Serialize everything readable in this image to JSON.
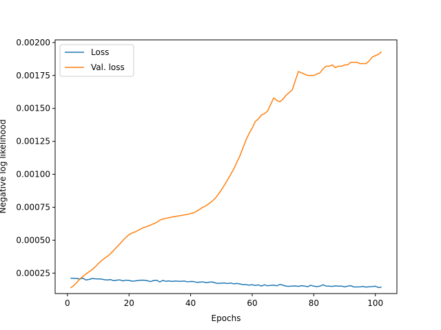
{
  "chart_data": {
    "type": "line",
    "title": "",
    "xlabel": "Epochs",
    "ylabel": "Negative log likelihood",
    "xlim": [
      -4,
      107
    ],
    "ylim": [
      9.5e-05,
      0.00202
    ],
    "xticks": [
      0,
      20,
      40,
      60,
      80,
      100
    ],
    "xtick_labels": [
      "0",
      "20",
      "40",
      "60",
      "80",
      "100"
    ],
    "yticks": [
      0.00025,
      0.0005,
      0.00075,
      0.001,
      0.00125,
      0.0015,
      0.00175,
      0.002
    ],
    "ytick_labels": [
      "0.00025",
      "0.00050",
      "0.00075",
      "0.00100",
      "0.00125",
      "0.00150",
      "0.00175",
      "0.00200"
    ],
    "grid": false,
    "legend_position": "top-left",
    "series": [
      {
        "name": "Loss",
        "color": "#1f77b4",
        "x": [
          1,
          2,
          3,
          4,
          5,
          6,
          7,
          8,
          9,
          10,
          11,
          12,
          13,
          14,
          15,
          16,
          17,
          18,
          19,
          20,
          21,
          22,
          23,
          24,
          25,
          26,
          27,
          28,
          29,
          30,
          31,
          32,
          33,
          34,
          35,
          36,
          37,
          38,
          39,
          40,
          41,
          42,
          43,
          44,
          45,
          46,
          47,
          48,
          49,
          50,
          51,
          52,
          53,
          54,
          55,
          56,
          57,
          58,
          59,
          60,
          61,
          62,
          63,
          64,
          65,
          66,
          67,
          68,
          69,
          70,
          71,
          72,
          73,
          74,
          75,
          76,
          77,
          78,
          79,
          80,
          81,
          82,
          83,
          84,
          85,
          86,
          87,
          88,
          89,
          90,
          91,
          92,
          93,
          94,
          95,
          96,
          97,
          98,
          99,
          100,
          101,
          102
        ],
        "y": [
          0.000212,
          0.000211,
          0.00021,
          0.000205,
          0.000212,
          0.000198,
          0.000202,
          0.000209,
          0.000207,
          0.000206,
          0.000205,
          0.0002,
          0.000198,
          0.000201,
          0.000193,
          0.000197,
          0.000199,
          0.000191,
          0.000197,
          0.000195,
          0.000189,
          0.000191,
          0.000195,
          0.000197,
          0.000196,
          0.000192,
          0.000186,
          0.000194,
          0.000196,
          0.000183,
          0.000195,
          0.000188,
          0.000191,
          0.000187,
          0.00019,
          0.000188,
          0.000188,
          0.00019,
          0.000184,
          0.000187,
          0.000186,
          0.00018,
          0.000182,
          0.000184,
          0.000178,
          0.000181,
          0.000183,
          0.000176,
          0.000172,
          0.000174,
          0.000175,
          0.000171,
          0.000175,
          0.000169,
          0.000172,
          0.000168,
          0.000163,
          0.000163,
          0.000159,
          0.000162,
          0.000157,
          0.000161,
          0.000152,
          0.000162,
          0.000154,
          0.000157,
          0.000159,
          0.000154,
          0.000164,
          0.000159,
          0.000151,
          0.00015,
          0.000152,
          0.000153,
          0.000149,
          0.000155,
          0.000152,
          0.000147,
          0.000158,
          0.000151,
          0.000148,
          0.000151,
          0.000162,
          0.000152,
          0.000151,
          0.000149,
          0.000153,
          0.000151,
          0.000152,
          0.000146,
          0.000151,
          0.000155,
          0.000145,
          0.000145,
          0.000146,
          0.000149,
          0.000144,
          0.000147,
          0.000148,
          0.000151,
          0.000141,
          0.000144
        ]
      },
      {
        "name": "Val. loss",
        "color": "#ff7f0e",
        "x": [
          1,
          2,
          3,
          4,
          5,
          6,
          7,
          8,
          9,
          10,
          11,
          12,
          13,
          14,
          15,
          16,
          17,
          18,
          19,
          20,
          21,
          22,
          23,
          24,
          25,
          26,
          27,
          28,
          29,
          30,
          31,
          32,
          33,
          34,
          35,
          36,
          37,
          38,
          39,
          40,
          41,
          42,
          43,
          44,
          45,
          46,
          47,
          48,
          49,
          50,
          51,
          52,
          53,
          54,
          55,
          56,
          57,
          58,
          59,
          60,
          61,
          62,
          63,
          64,
          65,
          66,
          67,
          68,
          69,
          70,
          71,
          72,
          73,
          74,
          75,
          76,
          77,
          78,
          79,
          80,
          81,
          82,
          83,
          84,
          85,
          86,
          87,
          88,
          89,
          90,
          91,
          92,
          93,
          94,
          95,
          96,
          97,
          98,
          99,
          100,
          101,
          102
        ],
        "y": [
          0.000138,
          0.000155,
          0.000178,
          0.000205,
          0.000225,
          0.000243,
          0.00026,
          0.000276,
          0.000298,
          0.000322,
          0.000343,
          0.000362,
          0.000378,
          0.000398,
          0.000422,
          0.000448,
          0.000472,
          0.000498,
          0.000522,
          0.000542,
          0.000555,
          0.000563,
          0.000575,
          0.000588,
          0.000598,
          0.000605,
          0.000615,
          0.000625,
          0.000636,
          0.000652,
          0.000661,
          0.000666,
          0.000671,
          0.000676,
          0.00068,
          0.000684,
          0.000688,
          0.000692,
          0.000696,
          0.000702,
          0.000708,
          0.00072,
          0.000735,
          0.00075,
          0.000762,
          0.000778,
          0.000796,
          0.000818,
          0.000848,
          0.000882,
          0.000918,
          0.000958,
          0.000998,
          0.00104,
          0.00109,
          0.00114,
          0.0012,
          0.00126,
          0.00131,
          0.00135,
          0.0014,
          0.00142,
          0.00145,
          0.00146,
          0.00148,
          0.00153,
          0.00158,
          0.00156,
          0.00155,
          0.00157,
          0.0016,
          0.00162,
          0.00164,
          0.00171,
          0.00178,
          0.00177,
          0.00176,
          0.00175,
          0.00175,
          0.00175,
          0.00176,
          0.00177,
          0.0018,
          0.00182,
          0.00182,
          0.00183,
          0.00181,
          0.00182,
          0.00182,
          0.00183,
          0.00183,
          0.00185,
          0.00185,
          0.00185,
          0.00184,
          0.00184,
          0.00184,
          0.00186,
          0.00189,
          0.0019,
          0.00191,
          0.00193
        ]
      }
    ]
  }
}
